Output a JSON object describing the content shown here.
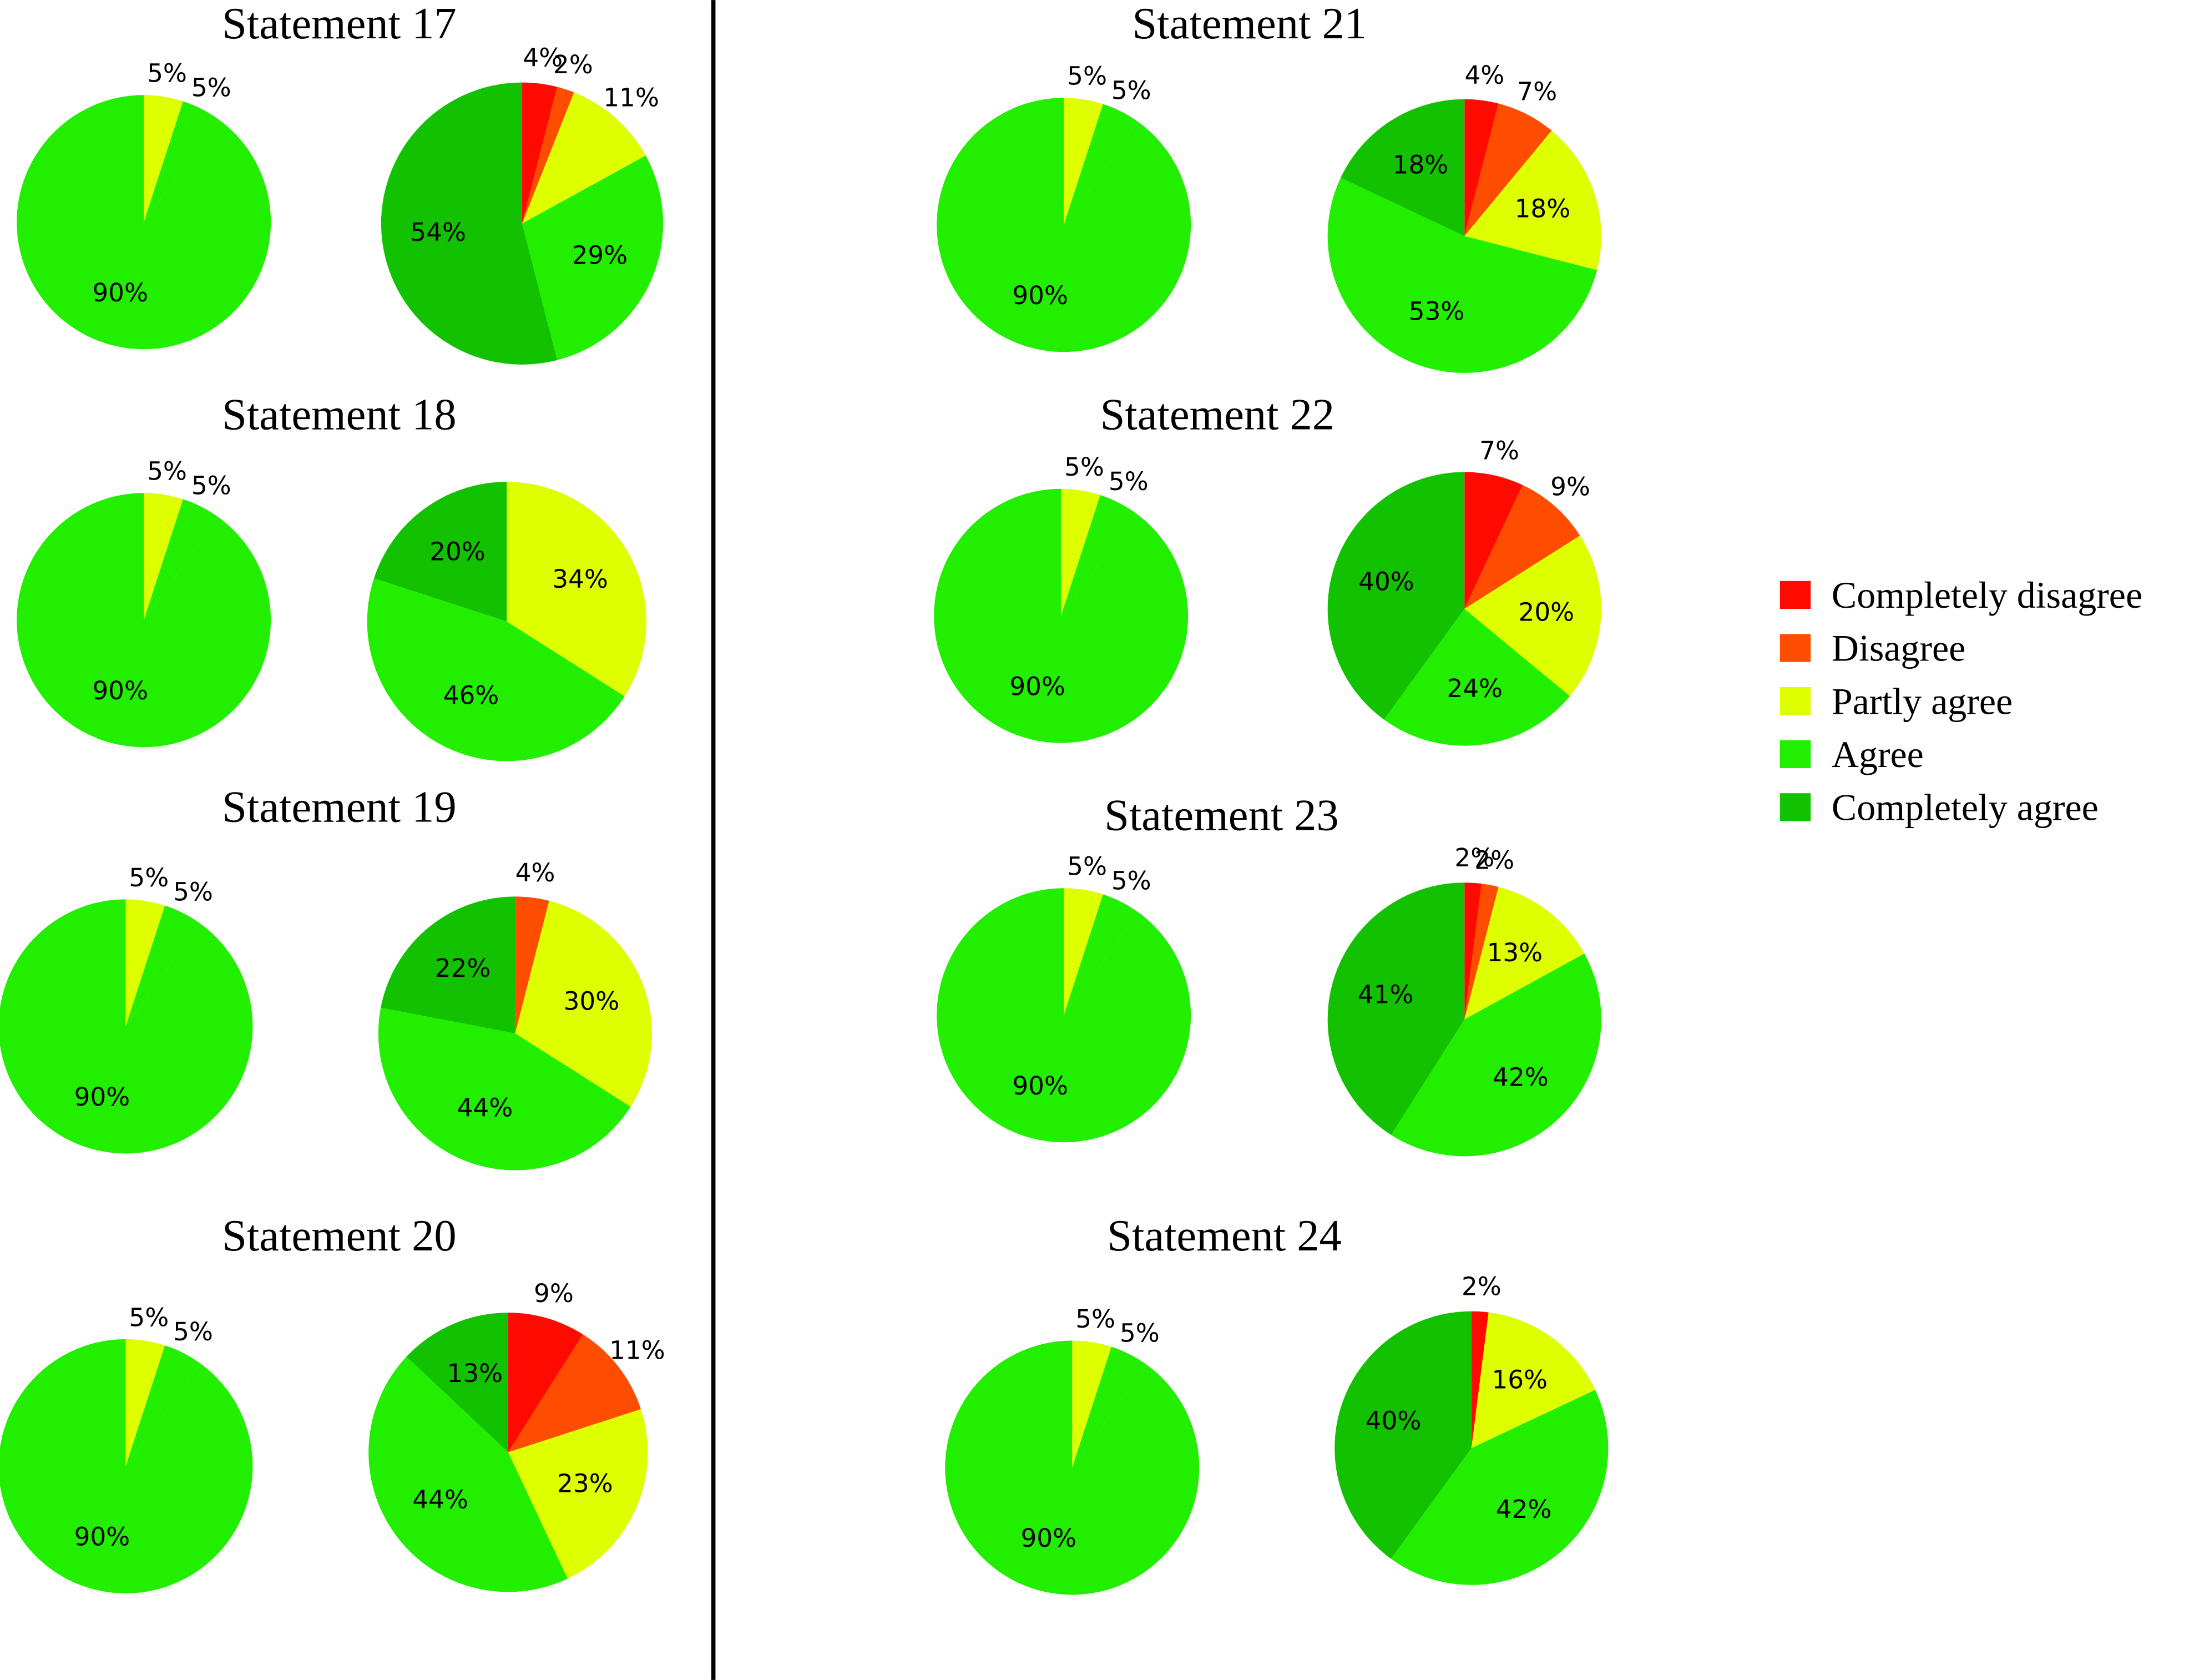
{
  "legend": {
    "categories": [
      "Completely disagree",
      "Disagree",
      "Partly agree",
      "Agree",
      "Completely agree"
    ],
    "colors": [
      "#ff0a00",
      "#ff4d00",
      "#ddff00",
      "#22ee00",
      "#12c200"
    ],
    "position": "right"
  },
  "reference": {
    "values": [
      5,
      5,
      90
    ],
    "value_labels": [
      "5%",
      "5%",
      "90%"
    ],
    "colors": [
      "#ddff00",
      "#22ee00",
      "#22ee00"
    ]
  },
  "chart_data": [
    {
      "type": "pie",
      "title": "Statement 17",
      "values": [
        4,
        2,
        11,
        29,
        54
      ],
      "value_labels": [
        "4%",
        "2%",
        "11%",
        "29%",
        "54%"
      ]
    },
    {
      "type": "pie",
      "title": "Statement 18",
      "values": [
        0,
        0,
        34,
        46,
        20
      ],
      "value_labels": [
        null,
        null,
        "34%",
        "46%",
        "20%"
      ]
    },
    {
      "type": "pie",
      "title": "Statement 19",
      "values": [
        0,
        4,
        30,
        44,
        22
      ],
      "value_labels": [
        null,
        "4%",
        "30%",
        "44%",
        "22%"
      ]
    },
    {
      "type": "pie",
      "title": "Statement 20",
      "values": [
        9,
        11,
        23,
        44,
        13
      ],
      "value_labels": [
        "9%",
        "11%",
        "23%",
        "44%",
        "13%"
      ]
    },
    {
      "type": "pie",
      "title": "Statement 21",
      "values": [
        4,
        7,
        18,
        53,
        18
      ],
      "value_labels": [
        "4%",
        "7%",
        "18%",
        "53%",
        "18%"
      ]
    },
    {
      "type": "pie",
      "title": "Statement 22",
      "values": [
        7,
        9,
        20,
        24,
        40
      ],
      "value_labels": [
        "7%",
        "9%",
        "20%",
        "24%",
        "40%"
      ]
    },
    {
      "type": "pie",
      "title": "Statement 23",
      "values": [
        2,
        2,
        13,
        42,
        41
      ],
      "value_labels": [
        "2%",
        "2%",
        "13%",
        "42%",
        "41%"
      ]
    },
    {
      "type": "pie",
      "title": "Statement 24",
      "values": [
        2,
        0,
        16,
        42,
        40
      ],
      "value_labels": [
        "2%",
        null,
        "16%",
        "42%",
        "40%"
      ]
    }
  ]
}
